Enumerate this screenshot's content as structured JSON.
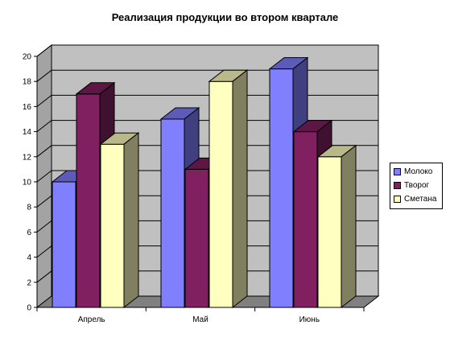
{
  "chart_data": {
    "type": "bar",
    "title": "Реализация продукции во втором квартале",
    "xlabel": "",
    "ylabel": "",
    "categories": [
      "Апрель",
      "Май",
      "Июнь"
    ],
    "ylim": [
      0,
      20
    ],
    "yticks": [
      0,
      2,
      4,
      6,
      8,
      10,
      12,
      14,
      16,
      18,
      20
    ],
    "grid": true,
    "legend_position": "right",
    "series": [
      {
        "name": "Молоко",
        "values": [
          10,
          15,
          19
        ],
        "color": "#8080ff"
      },
      {
        "name": "Творог",
        "values": [
          17,
          11,
          14
        ],
        "color": "#802060"
      },
      {
        "name": "Сметана",
        "values": [
          13,
          18,
          12
        ],
        "color": "#ffffc0"
      }
    ],
    "wall_color": "#c0c0c0",
    "floor_color": "#808080"
  }
}
